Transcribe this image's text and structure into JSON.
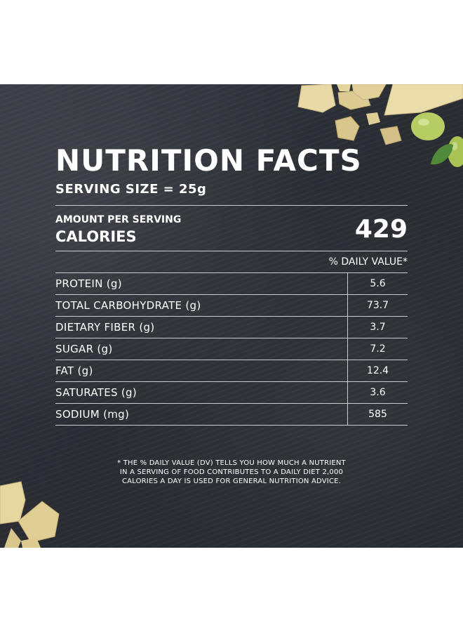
{
  "label": {
    "title": "NUTRITION FACTS",
    "serving_size": "SERVING SIZE = 25g",
    "amount_per_serving": "AMOUNT PER SERVING",
    "calories_label": "CALORIES",
    "calories_value": "429",
    "daily_value_header": "% DAILY VALUE*",
    "nutrients": [
      {
        "name": "PROTEIN (g)",
        "value": "5.6"
      },
      {
        "name": "TOTAL CARBOHYDRATE (g)",
        "value": "73.7"
      },
      {
        "name": "DIETARY FIBER (g)",
        "value": "3.7"
      },
      {
        "name": "SUGAR (g)",
        "value": "7.2"
      },
      {
        "name": "FAT (g)",
        "value": "12.4"
      },
      {
        "name": "SATURATES (g)",
        "value": "3.6"
      },
      {
        "name": "SODIUM (mg)",
        "value": "585"
      }
    ],
    "footnote": [
      "* THE % DAILY VALUE (DV) TELLS YOU HOW MUCH A NUTRIENT",
      "IN A SERVING OF FOOD CONTRIBUTES TO A DAILY DIET 2,000",
      "CALORIES A DAY IS USED FOR GENERAL NUTRITION ADVICE."
    ]
  },
  "colors": {
    "slate": "#2a2d33",
    "text": "#ffffff",
    "rule": "#c9cbcf",
    "cheese": "#e6d6a2",
    "grape": "#b8cf6a",
    "leaf": "#4f8a3a"
  },
  "decorations": [
    "cheese-pieces",
    "green-grapes",
    "basil-leaf"
  ]
}
